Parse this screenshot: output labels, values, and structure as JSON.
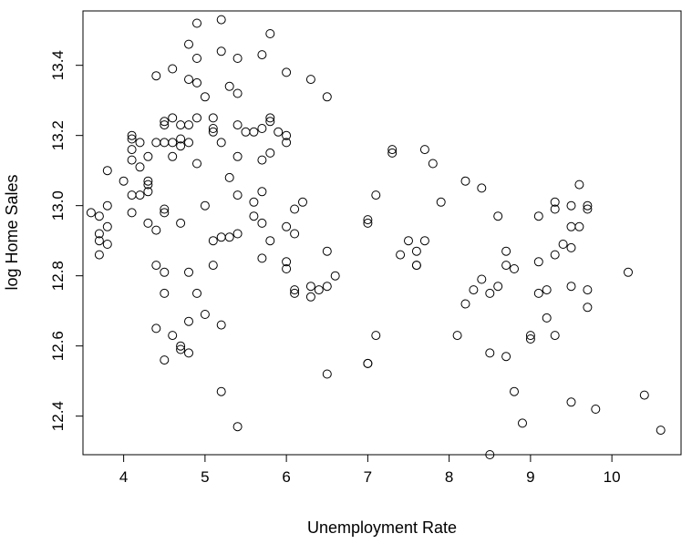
{
  "chart_data": {
    "type": "scatter",
    "title": "",
    "xlabel": "Unemployment Rate",
    "ylabel": "log Home Sales",
    "xlim": [
      3.5,
      10.85
    ],
    "ylim": [
      12.29,
      13.555
    ],
    "x_ticks": [
      4,
      5,
      6,
      7,
      8,
      9,
      10
    ],
    "y_ticks": [
      12.4,
      12.6,
      12.8,
      13.0,
      13.2,
      13.4
    ],
    "y_tick_labels": [
      "12.4",
      "12.6",
      "12.8",
      "13.0",
      "13.2",
      "13.4"
    ],
    "grid": false,
    "marker": "open-circle",
    "marker_color": "#000000",
    "points": [
      [
        3.6,
        12.98
      ],
      [
        3.7,
        12.97
      ],
      [
        3.7,
        12.92
      ],
      [
        3.7,
        12.9
      ],
      [
        3.7,
        12.86
      ],
      [
        3.8,
        13.1
      ],
      [
        3.8,
        13.0
      ],
      [
        3.8,
        12.94
      ],
      [
        3.8,
        12.89
      ],
      [
        4.0,
        13.07
      ],
      [
        4.1,
        13.2
      ],
      [
        4.1,
        13.19
      ],
      [
        4.1,
        13.16
      ],
      [
        4.1,
        13.13
      ],
      [
        4.1,
        13.03
      ],
      [
        4.1,
        12.98
      ],
      [
        4.2,
        13.18
      ],
      [
        4.2,
        13.11
      ],
      [
        4.2,
        13.03
      ],
      [
        4.3,
        13.14
      ],
      [
        4.3,
        13.07
      ],
      [
        4.3,
        13.06
      ],
      [
        4.3,
        13.04
      ],
      [
        4.3,
        12.95
      ],
      [
        4.4,
        13.37
      ],
      [
        4.4,
        13.18
      ],
      [
        4.4,
        12.93
      ],
      [
        4.4,
        12.83
      ],
      [
        4.4,
        12.65
      ],
      [
        4.5,
        13.24
      ],
      [
        4.5,
        13.23
      ],
      [
        4.5,
        13.18
      ],
      [
        4.5,
        12.99
      ],
      [
        4.5,
        12.98
      ],
      [
        4.5,
        12.81
      ],
      [
        4.5,
        12.75
      ],
      [
        4.5,
        12.56
      ],
      [
        4.6,
        13.39
      ],
      [
        4.6,
        13.25
      ],
      [
        4.6,
        13.18
      ],
      [
        4.6,
        13.14
      ],
      [
        4.6,
        12.63
      ],
      [
        4.7,
        13.23
      ],
      [
        4.7,
        13.19
      ],
      [
        4.7,
        13.17
      ],
      [
        4.7,
        12.95
      ],
      [
        4.7,
        12.6
      ],
      [
        4.7,
        12.59
      ],
      [
        4.8,
        13.46
      ],
      [
        4.8,
        13.36
      ],
      [
        4.8,
        13.23
      ],
      [
        4.8,
        13.18
      ],
      [
        4.8,
        12.81
      ],
      [
        4.8,
        12.67
      ],
      [
        4.8,
        12.58
      ],
      [
        4.9,
        13.52
      ],
      [
        4.9,
        13.42
      ],
      [
        4.9,
        13.35
      ],
      [
        4.9,
        13.25
      ],
      [
        4.9,
        13.12
      ],
      [
        4.9,
        12.75
      ],
      [
        5.0,
        13.31
      ],
      [
        5.0,
        13.0
      ],
      [
        5.0,
        12.69
      ],
      [
        5.1,
        13.25
      ],
      [
        5.1,
        13.22
      ],
      [
        5.1,
        13.21
      ],
      [
        5.1,
        12.9
      ],
      [
        5.1,
        12.83
      ],
      [
        5.2,
        13.53
      ],
      [
        5.2,
        13.44
      ],
      [
        5.2,
        13.18
      ],
      [
        5.2,
        12.91
      ],
      [
        5.2,
        12.66
      ],
      [
        5.2,
        12.47
      ],
      [
        5.3,
        13.34
      ],
      [
        5.3,
        13.08
      ],
      [
        5.3,
        12.91
      ],
      [
        5.4,
        13.42
      ],
      [
        5.4,
        13.32
      ],
      [
        5.4,
        13.23
      ],
      [
        5.4,
        13.14
      ],
      [
        5.4,
        13.03
      ],
      [
        5.4,
        12.92
      ],
      [
        5.4,
        12.37
      ],
      [
        5.5,
        13.21
      ],
      [
        5.6,
        13.21
      ],
      [
        5.6,
        13.01
      ],
      [
        5.6,
        12.97
      ],
      [
        5.7,
        13.43
      ],
      [
        5.7,
        13.22
      ],
      [
        5.7,
        13.13
      ],
      [
        5.7,
        13.04
      ],
      [
        5.7,
        12.95
      ],
      [
        5.7,
        12.85
      ],
      [
        5.8,
        13.49
      ],
      [
        5.8,
        13.25
      ],
      [
        5.8,
        13.24
      ],
      [
        5.8,
        13.15
      ],
      [
        5.8,
        12.9
      ],
      [
        5.9,
        13.21
      ],
      [
        6.0,
        13.38
      ],
      [
        6.0,
        13.2
      ],
      [
        6.0,
        13.18
      ],
      [
        6.0,
        12.94
      ],
      [
        6.0,
        12.84
      ],
      [
        6.0,
        12.82
      ],
      [
        6.1,
        12.99
      ],
      [
        6.1,
        12.92
      ],
      [
        6.1,
        12.76
      ],
      [
        6.1,
        12.75
      ],
      [
        6.2,
        13.01
      ],
      [
        6.3,
        13.36
      ],
      [
        6.3,
        12.77
      ],
      [
        6.3,
        12.74
      ],
      [
        6.4,
        12.76
      ],
      [
        6.5,
        13.31
      ],
      [
        6.5,
        12.87
      ],
      [
        6.5,
        12.77
      ],
      [
        6.5,
        12.52
      ],
      [
        6.6,
        12.8
      ],
      [
        7.0,
        12.96
      ],
      [
        7.0,
        12.95
      ],
      [
        7.0,
        12.55
      ],
      [
        7.0,
        12.55
      ],
      [
        7.1,
        13.03
      ],
      [
        7.1,
        12.63
      ],
      [
        7.3,
        13.16
      ],
      [
        7.3,
        13.15
      ],
      [
        7.4,
        12.86
      ],
      [
        7.5,
        12.9
      ],
      [
        7.6,
        12.87
      ],
      [
        7.6,
        12.83
      ],
      [
        7.6,
        12.83
      ],
      [
        7.7,
        13.16
      ],
      [
        7.7,
        12.9
      ],
      [
        7.8,
        13.12
      ],
      [
        7.9,
        13.01
      ],
      [
        8.1,
        12.63
      ],
      [
        8.2,
        13.07
      ],
      [
        8.2,
        12.72
      ],
      [
        8.3,
        12.76
      ],
      [
        8.4,
        13.05
      ],
      [
        8.4,
        12.79
      ],
      [
        8.5,
        12.75
      ],
      [
        8.5,
        12.58
      ],
      [
        8.5,
        12.29
      ],
      [
        8.6,
        12.97
      ],
      [
        8.6,
        12.77
      ],
      [
        8.7,
        12.87
      ],
      [
        8.7,
        12.83
      ],
      [
        8.7,
        12.57
      ],
      [
        8.8,
        12.82
      ],
      [
        8.8,
        12.47
      ],
      [
        8.9,
        12.38
      ],
      [
        9.0,
        12.63
      ],
      [
        9.0,
        12.62
      ],
      [
        9.1,
        12.97
      ],
      [
        9.1,
        12.84
      ],
      [
        9.1,
        12.75
      ],
      [
        9.2,
        12.76
      ],
      [
        9.2,
        12.68
      ],
      [
        9.3,
        13.01
      ],
      [
        9.3,
        12.99
      ],
      [
        9.3,
        12.86
      ],
      [
        9.3,
        12.63
      ],
      [
        9.4,
        12.89
      ],
      [
        9.5,
        13.0
      ],
      [
        9.5,
        12.94
      ],
      [
        9.5,
        12.88
      ],
      [
        9.5,
        12.77
      ],
      [
        9.5,
        12.44
      ],
      [
        9.6,
        13.06
      ],
      [
        9.6,
        12.94
      ],
      [
        9.7,
        13.0
      ],
      [
        9.7,
        12.99
      ],
      [
        9.7,
        12.76
      ],
      [
        9.7,
        12.71
      ],
      [
        9.8,
        12.42
      ],
      [
        10.2,
        12.81
      ],
      [
        10.4,
        12.46
      ],
      [
        10.6,
        12.36
      ]
    ]
  }
}
